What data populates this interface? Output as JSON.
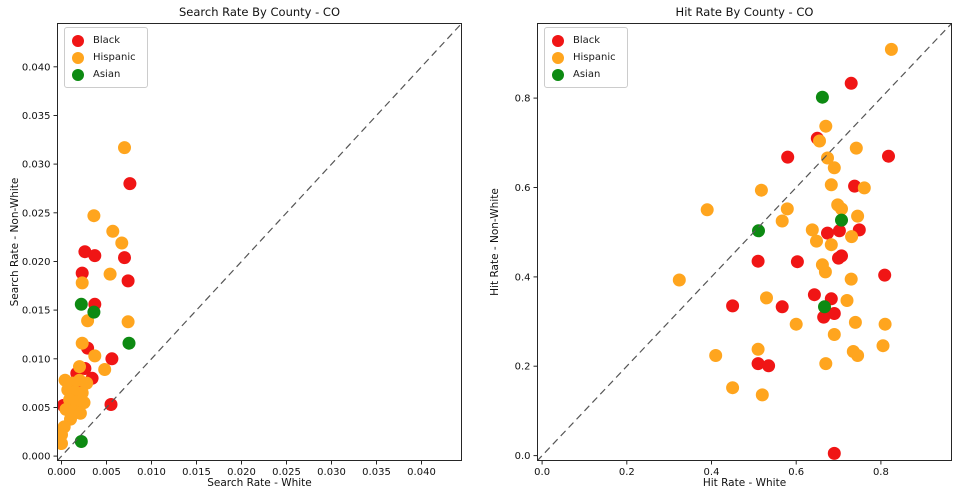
{
  "figure": {
    "background": "#ffffff"
  },
  "legend_labels": [
    "Black",
    "Hispanic",
    "Asian"
  ],
  "chart_data": [
    {
      "type": "scatter",
      "title": "Search Rate By County - CO",
      "xlabel": "Search Rate - White",
      "ylabel": "Search Rate - Non-White",
      "xlim": [
        -0.0005,
        0.0445
      ],
      "ylim": [
        -0.0005,
        0.0445
      ],
      "xticks": [
        0.0,
        0.005,
        0.01,
        0.015,
        0.02,
        0.025,
        0.03,
        0.035,
        0.04
      ],
      "xtick_labels": [
        "0.000",
        "0.005",
        "0.010",
        "0.015",
        "0.020",
        "0.025",
        "0.030",
        "0.035",
        "0.040"
      ],
      "yticks": [
        0.0,
        0.005,
        0.01,
        0.015,
        0.02,
        0.025,
        0.03,
        0.035,
        0.04
      ],
      "ytick_labels": [
        "0.000",
        "0.005",
        "0.010",
        "0.015",
        "0.020",
        "0.025",
        "0.030",
        "0.035",
        "0.040"
      ],
      "grid": false,
      "legend_position": "upper-left",
      "diagonal": {
        "style": "dashed",
        "color": "#555555",
        "meaning": "y = x reference line"
      },
      "series": [
        {
          "name": "Black",
          "color": "#f01515",
          "points": [
            [
              0.0076,
              0.028
            ],
            [
              0.0026,
              0.021
            ],
            [
              0.0037,
              0.0206
            ],
            [
              0.007,
              0.0204
            ],
            [
              0.0023,
              0.0188
            ],
            [
              0.0074,
              0.018
            ],
            [
              0.0037,
              0.0156
            ],
            [
              0.0029,
              0.0111
            ],
            [
              0.0056,
              0.01
            ],
            [
              0.0026,
              0.009
            ],
            [
              0.0017,
              0.0085
            ],
            [
              0.0034,
              0.008
            ],
            [
              0.002,
              0.0073
            ],
            [
              0.0055,
              0.0053
            ],
            [
              0.0002,
              0.0052
            ]
          ]
        },
        {
          "name": "Hispanic",
          "color": "#ffa51e",
          "points": [
            [
              0.007,
              0.0317
            ],
            [
              0.0036,
              0.0247
            ],
            [
              0.0057,
              0.0231
            ],
            [
              0.0067,
              0.0219
            ],
            [
              0.0054,
              0.0187
            ],
            [
              0.0023,
              0.0178
            ],
            [
              0.0029,
              0.0139
            ],
            [
              0.0074,
              0.0138
            ],
            [
              0.0023,
              0.0116
            ],
            [
              0.0037,
              0.0103
            ],
            [
              0.002,
              0.0092
            ],
            [
              0.0048,
              0.0089
            ],
            [
              0.0004,
              0.0078
            ],
            [
              0.002,
              0.0078
            ],
            [
              0.0012,
              0.0075
            ],
            [
              0.0028,
              0.0075
            ],
            [
              0.0007,
              0.0068
            ],
            [
              0.0015,
              0.0066
            ],
            [
              0.0023,
              0.0065
            ],
            [
              0.0009,
              0.0058
            ],
            [
              0.0017,
              0.0056
            ],
            [
              0.0025,
              0.0055
            ],
            [
              0.0005,
              0.0048
            ],
            [
              0.0013,
              0.0046
            ],
            [
              0.0021,
              0.0044
            ],
            [
              0.001,
              0.0038
            ],
            [
              0.0003,
              0.003
            ],
            [
              0.0,
              0.0022
            ],
            [
              0.0,
              0.0013
            ]
          ]
        },
        {
          "name": "Asian",
          "color": "#0d8a12",
          "points": [
            [
              0.0022,
              0.0156
            ],
            [
              0.0036,
              0.0148
            ],
            [
              0.0075,
              0.0116
            ],
            [
              0.0022,
              0.0015
            ]
          ]
        }
      ]
    },
    {
      "type": "scatter",
      "title": "Hit Rate By County - CO",
      "xlabel": "Hit Rate - White",
      "ylabel": "Hit Rate - Non-White",
      "xlim": [
        -0.012,
        0.968
      ],
      "ylim": [
        -0.012,
        0.968
      ],
      "xticks": [
        0.0,
        0.2,
        0.4,
        0.6,
        0.8
      ],
      "xtick_labels": [
        "0.0",
        "0.2",
        "0.4",
        "0.6",
        "0.8"
      ],
      "yticks": [
        0.0,
        0.2,
        0.4,
        0.6,
        0.8
      ],
      "ytick_labels": [
        "0.0",
        "0.2",
        "0.4",
        "0.6",
        "0.8"
      ],
      "grid": false,
      "legend_position": "upper-left",
      "diagonal": {
        "style": "dashed",
        "color": "#555555",
        "meaning": "y = x reference line"
      },
      "series": [
        {
          "name": "Black",
          "color": "#f01515",
          "points": [
            [
              0.73,
              0.833
            ],
            [
              0.65,
              0.71
            ],
            [
              0.58,
              0.668
            ],
            [
              0.818,
              0.67
            ],
            [
              0.738,
              0.603
            ],
            [
              0.674,
              0.498
            ],
            [
              0.702,
              0.503
            ],
            [
              0.749,
              0.505
            ],
            [
              0.707,
              0.447
            ],
            [
              0.51,
              0.435
            ],
            [
              0.603,
              0.434
            ],
            [
              0.7,
              0.442
            ],
            [
              0.809,
              0.404
            ],
            [
              0.643,
              0.36
            ],
            [
              0.683,
              0.351
            ],
            [
              0.45,
              0.335
            ],
            [
              0.567,
              0.333
            ],
            [
              0.69,
              0.318
            ],
            [
              0.665,
              0.31
            ],
            [
              0.51,
              0.206
            ],
            [
              0.535,
              0.201
            ],
            [
              0.69,
              0.005
            ]
          ]
        },
        {
          "name": "Hispanic",
          "color": "#ffa51e",
          "points": [
            [
              0.825,
              0.909
            ],
            [
              0.67,
              0.737
            ],
            [
              0.655,
              0.704
            ],
            [
              0.742,
              0.688
            ],
            [
              0.674,
              0.666
            ],
            [
              0.69,
              0.644
            ],
            [
              0.683,
              0.606
            ],
            [
              0.761,
              0.599
            ],
            [
              0.518,
              0.594
            ],
            [
              0.39,
              0.55
            ],
            [
              0.698,
              0.561
            ],
            [
              0.707,
              0.552
            ],
            [
              0.579,
              0.552
            ],
            [
              0.745,
              0.536
            ],
            [
              0.567,
              0.525
            ],
            [
              0.638,
              0.505
            ],
            [
              0.731,
              0.49
            ],
            [
              0.648,
              0.48
            ],
            [
              0.683,
              0.472
            ],
            [
              0.662,
              0.427
            ],
            [
              0.669,
              0.411
            ],
            [
              0.324,
              0.393
            ],
            [
              0.73,
              0.395
            ],
            [
              0.53,
              0.353
            ],
            [
              0.72,
              0.347
            ],
            [
              0.74,
              0.298
            ],
            [
              0.6,
              0.294
            ],
            [
              0.81,
              0.294
            ],
            [
              0.69,
              0.271
            ],
            [
              0.51,
              0.238
            ],
            [
              0.41,
              0.224
            ],
            [
              0.735,
              0.233
            ],
            [
              0.745,
              0.224
            ],
            [
              0.805,
              0.246
            ],
            [
              0.67,
              0.206
            ],
            [
              0.45,
              0.152
            ],
            [
              0.52,
              0.136
            ]
          ]
        },
        {
          "name": "Asian",
          "color": "#0d8a12",
          "points": [
            [
              0.662,
              0.802
            ],
            [
              0.707,
              0.527
            ],
            [
              0.511,
              0.503
            ],
            [
              0.667,
              0.333
            ]
          ]
        }
      ]
    }
  ]
}
